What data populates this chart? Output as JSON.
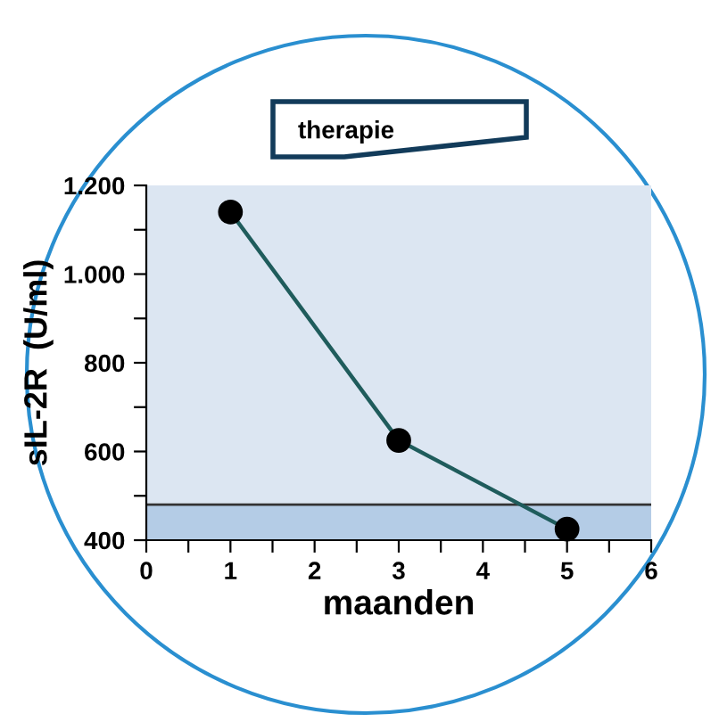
{
  "chart_data": {
    "type": "line",
    "xlabel": "maanden",
    "ylabel": "sIL-2R  (U/ml)",
    "annotations": [
      "therapie"
    ],
    "x": [
      1,
      3,
      5
    ],
    "series": [
      {
        "color": "#1f5c5c",
        "values": [
          1140,
          625,
          425
        ]
      }
    ],
    "xlim": [
      0,
      6
    ],
    "ylim": [
      400,
      1200
    ],
    "xticks": [
      0,
      {
        "value": 0.5,
        "label": null
      },
      1,
      {
        "value": 1.5,
        "label": null
      },
      2,
      {
        "value": 2.5,
        "label": null
      },
      3,
      {
        "value": 3.5,
        "label": null
      },
      4,
      {
        "value": 4.5,
        "label": null
      },
      5,
      {
        "value": 5.5,
        "label": null
      },
      6
    ],
    "yticks": [
      400,
      {
        "value": 500,
        "label": null
      },
      600,
      {
        "value": 700,
        "label": null
      },
      800,
      {
        "value": 900,
        "label": null
      },
      {
        "value": 1000,
        "label": "1.000"
      },
      {
        "value": 1100,
        "label": null
      },
      {
        "value": 1200,
        "label": "1.200"
      }
    ],
    "bands": [
      {
        "axis": "y",
        "from": 400,
        "to": 480,
        "color": "#b4cce6"
      }
    ],
    "ref_lines": [
      {
        "axis": "y",
        "value": 480,
        "color": "#333333",
        "line_style": "solid"
      }
    ],
    "marker": "circle",
    "line_style": "solid",
    "grid": false,
    "legend": false
  }
}
